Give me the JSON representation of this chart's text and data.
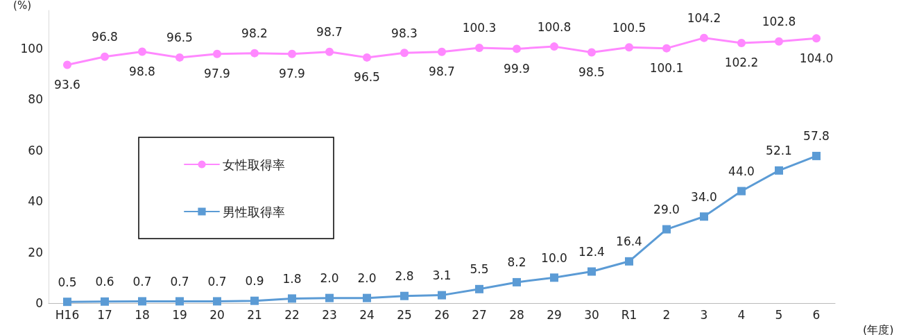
{
  "chart_data": {
    "type": "line",
    "ylabel": "(%)",
    "xlabel": "(年度)",
    "categories": [
      "H16",
      "17",
      "18",
      "19",
      "20",
      "21",
      "22",
      "23",
      "24",
      "25",
      "26",
      "27",
      "28",
      "29",
      "30",
      "R1",
      "2",
      "3",
      "4",
      "5",
      "6"
    ],
    "series": [
      {
        "name": "女性取得率",
        "color": "#ff88ff",
        "marker": "circle",
        "values": [
          93.6,
          96.8,
          98.8,
          96.5,
          97.9,
          98.2,
          97.9,
          98.7,
          96.5,
          98.3,
          98.7,
          100.3,
          99.9,
          100.8,
          98.5,
          100.5,
          100.1,
          104.2,
          102.2,
          102.8,
          104.0
        ],
        "value_labels": [
          "93.6",
          "96.8",
          "98.8",
          "96.5",
          "97.9",
          "98.2",
          "97.9",
          "98.7",
          "96.5",
          "98.3",
          "98.7",
          "100.3",
          "99.9",
          "100.8",
          "98.5",
          "100.5",
          "100.1",
          "104.2",
          "102.2",
          "102.8",
          "104.0"
        ]
      },
      {
        "name": "男性取得率",
        "color": "#5b9bd5",
        "marker": "square",
        "values": [
          0.5,
          0.6,
          0.7,
          0.7,
          0.7,
          0.9,
          1.8,
          2.0,
          2.0,
          2.8,
          3.1,
          5.5,
          8.2,
          10.0,
          12.4,
          16.4,
          29.0,
          34.0,
          44.0,
          52.1,
          57.8
        ],
        "value_labels": [
          "0.5",
          "0.6",
          "0.7",
          "0.7",
          "0.7",
          "0.9",
          "1.8",
          "2.0",
          "2.0",
          "2.8",
          "3.1",
          "5.5",
          "8.2",
          "10.0",
          "12.4",
          "16.4",
          "29.0",
          "34.0",
          "44.0",
          "52.1",
          "57.8"
        ]
      }
    ],
    "ylim": [
      0,
      115
    ],
    "yticks": [
      0,
      20,
      40,
      60,
      80,
      100
    ],
    "grid": false,
    "legend": "left",
    "line_style": "solid"
  }
}
